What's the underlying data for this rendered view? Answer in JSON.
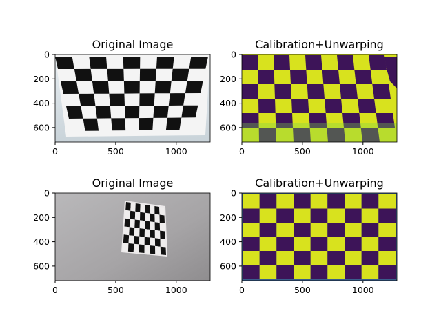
{
  "figure": {
    "panels": [
      {
        "title": "Original Image",
        "kind": "photo-board",
        "xticks": [
          "0",
          "500",
          "1000"
        ],
        "yticks": [
          "0",
          "200",
          "400",
          "600"
        ]
      },
      {
        "title": "Calibration+Unwarping",
        "kind": "viridis-board",
        "xticks": [
          "0",
          "500",
          "1000"
        ],
        "yticks": [
          "0",
          "200",
          "400",
          "600"
        ]
      },
      {
        "title": "Original Image",
        "kind": "photo-small-board",
        "xticks": [
          "0",
          "500",
          "1000"
        ],
        "yticks": [
          "0",
          "200",
          "400",
          "600"
        ]
      },
      {
        "title": "Calibration+Unwarping",
        "kind": "viridis-board-2",
        "xticks": [
          "0",
          "500",
          "1000"
        ],
        "yticks": [
          "0",
          "200",
          "400",
          "600"
        ]
      }
    ],
    "image_extent": {
      "width": 1280,
      "height": 720
    },
    "colors": {
      "viridis_dark": "#3d1458",
      "viridis_yellow": "#d8e21e",
      "viridis_green": "#7fd14a",
      "board_black": "#111111",
      "board_white": "#f4f4f4",
      "wall_gray": "#a8a6a8"
    }
  }
}
